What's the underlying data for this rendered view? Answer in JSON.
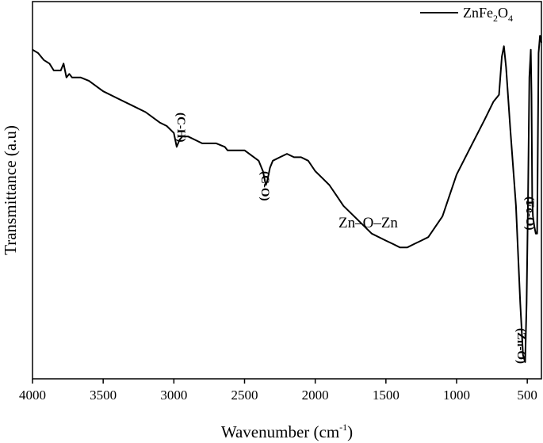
{
  "chart_data": {
    "type": "line",
    "xlabel": "Wavenumber (cm",
    "xlabel_sup": "-1",
    "xlabel_tail": ")",
    "ylabel": "Transmittance (a.u)",
    "xlim": [
      4000,
      400
    ],
    "x_reversed": true,
    "xticks": [
      4000,
      3500,
      3000,
      2500,
      2000,
      1500,
      1000,
      500
    ],
    "ylim": [
      0,
      100
    ],
    "yticks_shown": false,
    "grid": false,
    "legend_position": "top-right",
    "series": [
      {
        "name": "ZnFe2O4",
        "legend_parts": {
          "a": "ZnFe",
          "b": "2",
          "c": "O",
          "d": "4"
        },
        "color": "#000000",
        "x": [
          4000,
          3960,
          3920,
          3880,
          3850,
          3800,
          3780,
          3760,
          3740,
          3720,
          3700,
          3660,
          3600,
          3500,
          3400,
          3300,
          3200,
          3100,
          3050,
          3000,
          2980,
          2960,
          2940,
          2900,
          2850,
          2800,
          2700,
          2640,
          2620,
          2500,
          2400,
          2370,
          2350,
          2340,
          2320,
          2300,
          2250,
          2200,
          2150,
          2100,
          2050,
          2000,
          1950,
          1900,
          1850,
          1800,
          1700,
          1600,
          1500,
          1450,
          1400,
          1350,
          1300,
          1250,
          1200,
          1100,
          1000,
          900,
          800,
          740,
          700,
          680,
          665,
          650,
          620,
          580,
          550,
          530,
          515,
          505,
          495,
          485,
          475,
          470,
          465,
          460,
          450,
          440,
          430,
          420,
          410,
          405,
          400
        ],
        "y": [
          93,
          92,
          90,
          89,
          87,
          87,
          89,
          85,
          86,
          85,
          85,
          85,
          84,
          81,
          79,
          77,
          75,
          72,
          71,
          69,
          65,
          67,
          68,
          68,
          67,
          66,
          66,
          65,
          64,
          64,
          61,
          58,
          54,
          55,
          59,
          61,
          62,
          63,
          62,
          62,
          61,
          58,
          56,
          54,
          51,
          48,
          44,
          40,
          38,
          37,
          36,
          36,
          37,
          38,
          39,
          45,
          57,
          65,
          73,
          78,
          80,
          91,
          94,
          88,
          70,
          48,
          20,
          5,
          3,
          20,
          50,
          85,
          93,
          80,
          50,
          45,
          42,
          40,
          40,
          92,
          97,
          96,
          95
        ]
      }
    ],
    "annotations": [
      {
        "text": "(C-H)",
        "x": 2990,
        "vertical": true
      },
      {
        "text": "(C-O)",
        "x": 2330,
        "vertical": true
      },
      {
        "text": "Zn–O–Zn",
        "x": 1380,
        "vertical": false
      },
      {
        "text": "(Fe-O)",
        "x": 447,
        "vertical": true
      },
      {
        "text": "(Zn-O)",
        "x": 505,
        "vertical": true
      }
    ]
  }
}
